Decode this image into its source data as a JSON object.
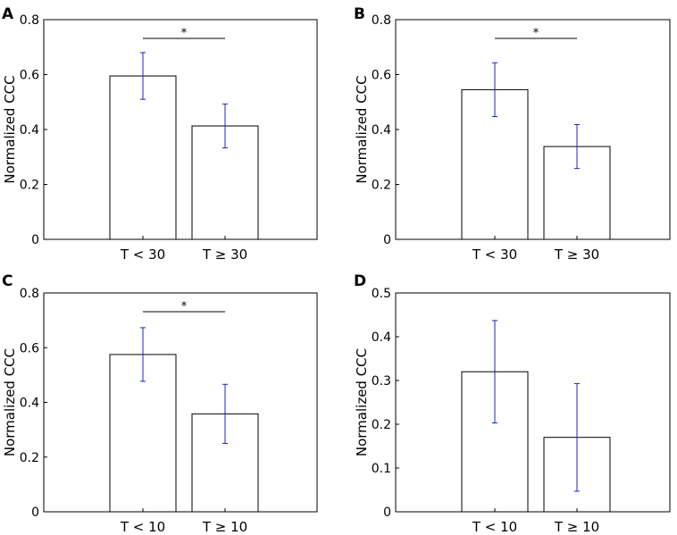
{
  "chart_data": [
    {
      "panel": "A",
      "type": "bar",
      "categories": [
        "T < 30",
        "T ≥ 30"
      ],
      "values": [
        0.595,
        0.413
      ],
      "error": [
        0.085,
        0.08
      ],
      "ylabel": "Normalized CCC",
      "ylim": [
        0,
        0.8
      ],
      "yticks": [
        0,
        0.2,
        0.4,
        0.6,
        0.8
      ],
      "ytick_labels": [
        "0",
        "0.2",
        "0.4",
        "0.6",
        "0.8"
      ],
      "significance": "*"
    },
    {
      "panel": "B",
      "type": "bar",
      "categories": [
        "T < 30",
        "T ≥ 30"
      ],
      "values": [
        0.545,
        0.338
      ],
      "error": [
        0.098,
        0.08
      ],
      "ylabel": "Normalized CCC",
      "ylim": [
        0,
        0.8
      ],
      "yticks": [
        0,
        0.2,
        0.4,
        0.6,
        0.8
      ],
      "ytick_labels": [
        "0",
        "0.2",
        "0.4",
        "0.6",
        "0.8"
      ],
      "significance": "*"
    },
    {
      "panel": "C",
      "type": "bar",
      "categories": [
        "T < 10",
        "T ≥ 10"
      ],
      "values": [
        0.575,
        0.358
      ],
      "error": [
        0.098,
        0.108
      ],
      "ylabel": "Normalized CCC",
      "ylim": [
        0,
        0.8
      ],
      "yticks": [
        0,
        0.2,
        0.4,
        0.6,
        0.8
      ],
      "ytick_labels": [
        "0",
        "0.2",
        "0.4",
        "0.6",
        "0.8"
      ],
      "significance": "*"
    },
    {
      "panel": "D",
      "type": "bar",
      "categories": [
        "T < 10",
        "T ≥ 10"
      ],
      "values": [
        0.32,
        0.17
      ],
      "error": [
        0.117,
        0.123
      ],
      "ylabel": "Normalized CCC",
      "ylim": [
        0,
        0.5
      ],
      "yticks": [
        0,
        0.1,
        0.2,
        0.3,
        0.4,
        0.5
      ],
      "ytick_labels": [
        "0",
        "0.1",
        "0.2",
        "0.3",
        "0.4",
        "0.5"
      ],
      "significance": ""
    }
  ],
  "colors": {
    "bar_fill": "#ffffff",
    "bar_stroke": "#000000",
    "error_bar": "#2020c8",
    "axis": "#000000"
  }
}
